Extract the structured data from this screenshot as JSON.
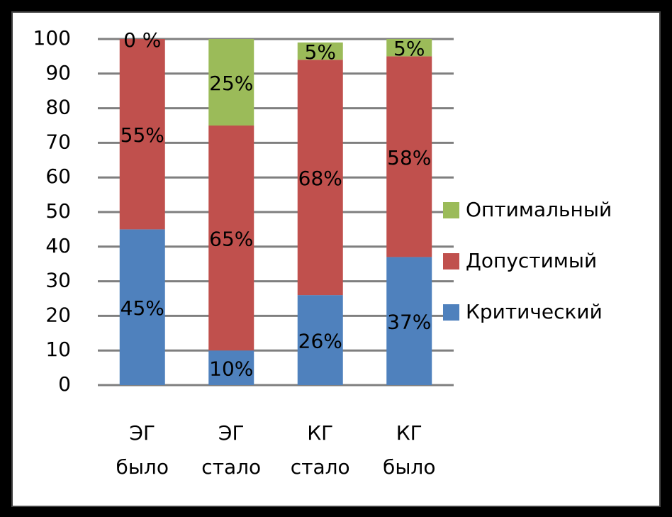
{
  "chart_data": {
    "type": "stacked-bar",
    "categories": [
      "ЭГ было",
      "ЭГ стало",
      "КГ стало",
      "КГ было"
    ],
    "series": [
      {
        "name": "Критический",
        "color": "#4f81bd",
        "values": [
          45,
          10,
          26,
          37
        ],
        "value_labels": [
          "45%",
          "10%",
          "26%",
          "37%"
        ]
      },
      {
        "name": "Допустимый",
        "color": "#c0504d",
        "values": [
          55,
          65,
          68,
          58
        ],
        "value_labels": [
          "55%",
          "65%",
          "68%",
          "58%"
        ]
      },
      {
        "name": "Оптимальный",
        "color": "#9bbb59",
        "values": [
          0,
          25,
          5,
          5
        ],
        "value_labels": [
          "0 %",
          "25%",
          "5%",
          "5%"
        ]
      }
    ],
    "ylim": [
      0,
      100
    ],
    "yticks": [
      0,
      10,
      20,
      30,
      40,
      50,
      60,
      70,
      80,
      90,
      100
    ],
    "grid": true,
    "legend": "right"
  }
}
